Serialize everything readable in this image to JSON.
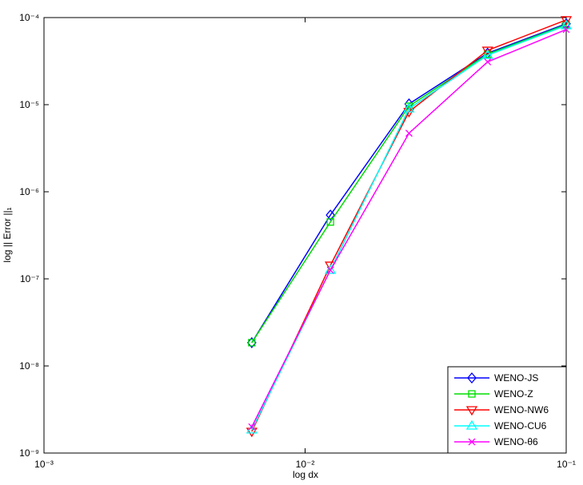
{
  "chart_data": {
    "type": "line",
    "xlabel": "log dx",
    "ylabel": "log || Error ||₁",
    "xscale": "log",
    "yscale": "log",
    "xlim": [
      0.001,
      0.1
    ],
    "ylim": [
      1e-09,
      0.0001
    ],
    "xticks": [
      {
        "value": 0.001,
        "label": "10⁻³"
      },
      {
        "value": 0.01,
        "label": "10⁻²"
      },
      {
        "value": 0.1,
        "label": "10⁻¹"
      }
    ],
    "yticks": [
      {
        "value": 1e-09,
        "label": "10⁻⁹"
      },
      {
        "value": 1e-08,
        "label": "10⁻⁸"
      },
      {
        "value": 1e-07,
        "label": "10⁻⁷"
      },
      {
        "value": 1e-06,
        "label": "10⁻⁶"
      },
      {
        "value": 1e-05,
        "label": "10⁻⁵"
      },
      {
        "value": 0.0001,
        "label": "10⁻⁴"
      }
    ],
    "legend": "lower right",
    "x": [
      0.00625,
      0.0125,
      0.025,
      0.05,
      0.1
    ],
    "series": [
      {
        "name": "WENO-JS",
        "color": "#0000ff",
        "marker": "diamond",
        "values": [
          1.85e-08,
          5.4e-07,
          1.02e-05,
          3.9e-05,
          8.5e-05
        ]
      },
      {
        "name": "WENO-Z",
        "color": "#00dd00",
        "marker": "square",
        "values": [
          1.85e-08,
          4.5e-07,
          9.6e-06,
          3.8e-05,
          8.3e-05
        ]
      },
      {
        "name": "WENO-NW6",
        "color": "#ff0000",
        "marker": "triangle-down",
        "values": [
          1.77e-09,
          1.43e-07,
          8.3e-06,
          4.2e-05,
          9.4e-05
        ]
      },
      {
        "name": "WENO-CU6",
        "color": "#00ffff",
        "marker": "triangle-up",
        "values": [
          1.85e-09,
          1.26e-07,
          9e-06,
          3.7e-05,
          8.1e-05
        ]
      },
      {
        "name": "WENO-θ6",
        "color": "#ff00ff",
        "marker": "x",
        "values": [
          2e-09,
          1.26e-07,
          4.7e-06,
          3.1e-05,
          7.3e-05
        ]
      }
    ]
  }
}
